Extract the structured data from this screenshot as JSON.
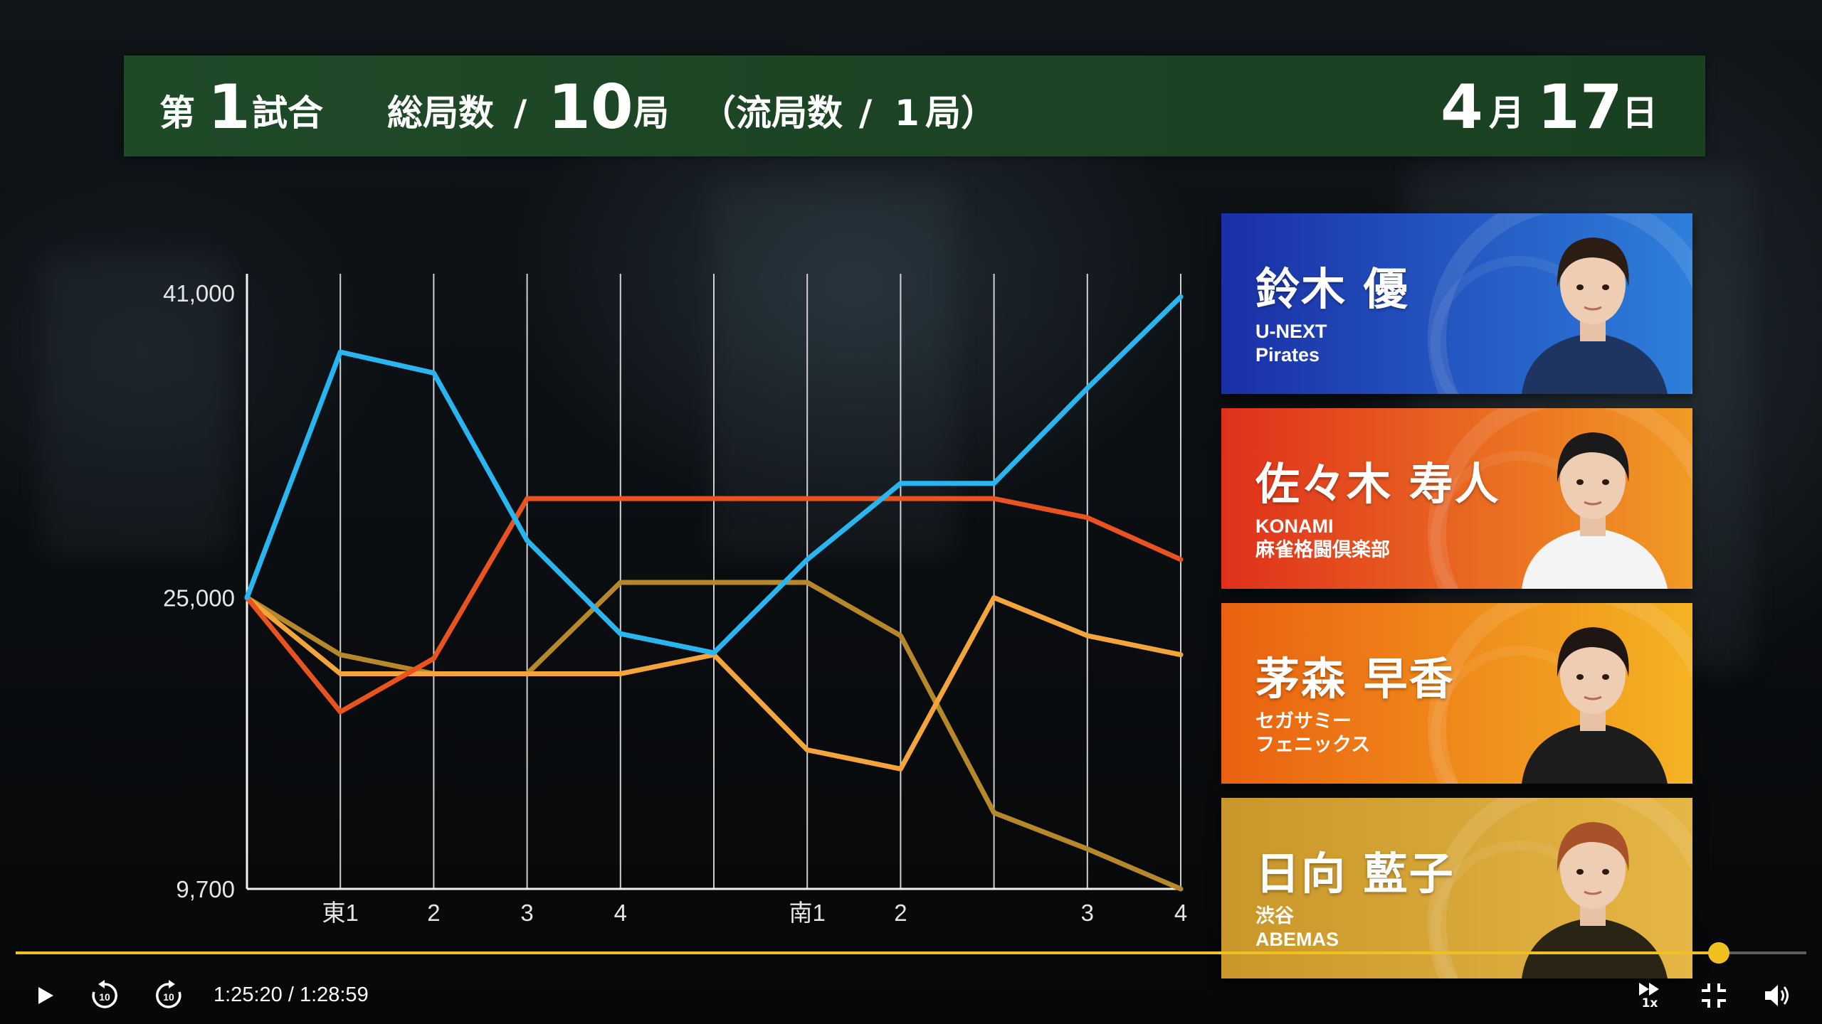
{
  "header": {
    "dai": "第",
    "game_number": "1",
    "shiai": "試合",
    "total_label": "総局数",
    "slash": "/",
    "total_rounds": "10",
    "kyoku": "局",
    "ryukyoku_open": "（流局数",
    "ryukyoku_count": "1",
    "ryukyoku_close": "局）",
    "month": "4",
    "month_unit": "月",
    "day": "17",
    "day_unit": "日"
  },
  "chart_data": {
    "type": "line",
    "y_ticks": [
      "41,000",
      "25,000",
      "9,700"
    ],
    "y_tick_values": [
      41000,
      25000,
      9700
    ],
    "ylim": [
      9700,
      41000
    ],
    "x_labels": [
      "東1",
      "2",
      "3",
      "4",
      "",
      "南1",
      "2",
      "",
      "3",
      "4"
    ],
    "grid": "vertical",
    "series": [
      {
        "color": "#29b6f0",
        "values": [
          25000,
          37900,
          36800,
          28000,
          23100,
          22100,
          27000,
          31000,
          31000,
          36000,
          40800
        ]
      },
      {
        "color": "#e8531f",
        "values": [
          25000,
          19000,
          21800,
          30200,
          30200,
          30200,
          30200,
          30200,
          30200,
          29200,
          27000
        ]
      },
      {
        "color": "#f3a53c",
        "values": [
          25000,
          21000,
          21000,
          21000,
          21000,
          22000,
          17000,
          16000,
          25000,
          23000,
          22000
        ]
      },
      {
        "color": "#b7882a",
        "values": [
          25000,
          22000,
          21000,
          21000,
          25800,
          25800,
          25800,
          23000,
          13700,
          11800,
          9700
        ]
      }
    ]
  },
  "players": [
    {
      "name": "鈴木 優",
      "team_line1": "U-NEXT",
      "team_line2": "Pirates",
      "bg_from": "#1a2fa6",
      "bg_to": "#2e7fdc",
      "hair": "#2b1d14",
      "shirt": "#1d3560"
    },
    {
      "name": "佐々木 寿人",
      "team_line1": "KONAMI",
      "team_line2": "麻雀格闘倶楽部",
      "bg_from": "#e0301c",
      "bg_to": "#f19a25",
      "hair": "#1a1a1a",
      "shirt": "#f4f4f4"
    },
    {
      "name": "茅森 早香",
      "team_line1": "セガサミー",
      "team_line2": "フェニックス",
      "bg_from": "#ea6010",
      "bg_to": "#f4b324",
      "hair": "#1f1614",
      "shirt": "#1c1c1c"
    },
    {
      "name": "日向 藍子",
      "team_line1": "渋谷",
      "team_line2": "ABEMAS",
      "bg_from": "#c9962a",
      "bg_to": "#e5b646",
      "hair": "#a8522a",
      "shirt": "#2a2417"
    }
  ],
  "player": {
    "current_time": "1:25:20",
    "separator": " / ",
    "duration": "1:28:59",
    "progress": 0.951,
    "speed_label": "1x",
    "skip_seconds": "10",
    "accent": "#f0c020"
  },
  "icons": [
    "play-icon",
    "rewind-10-icon",
    "forward-10-icon",
    "speed-icon",
    "exit-fullscreen-icon",
    "volume-icon"
  ]
}
